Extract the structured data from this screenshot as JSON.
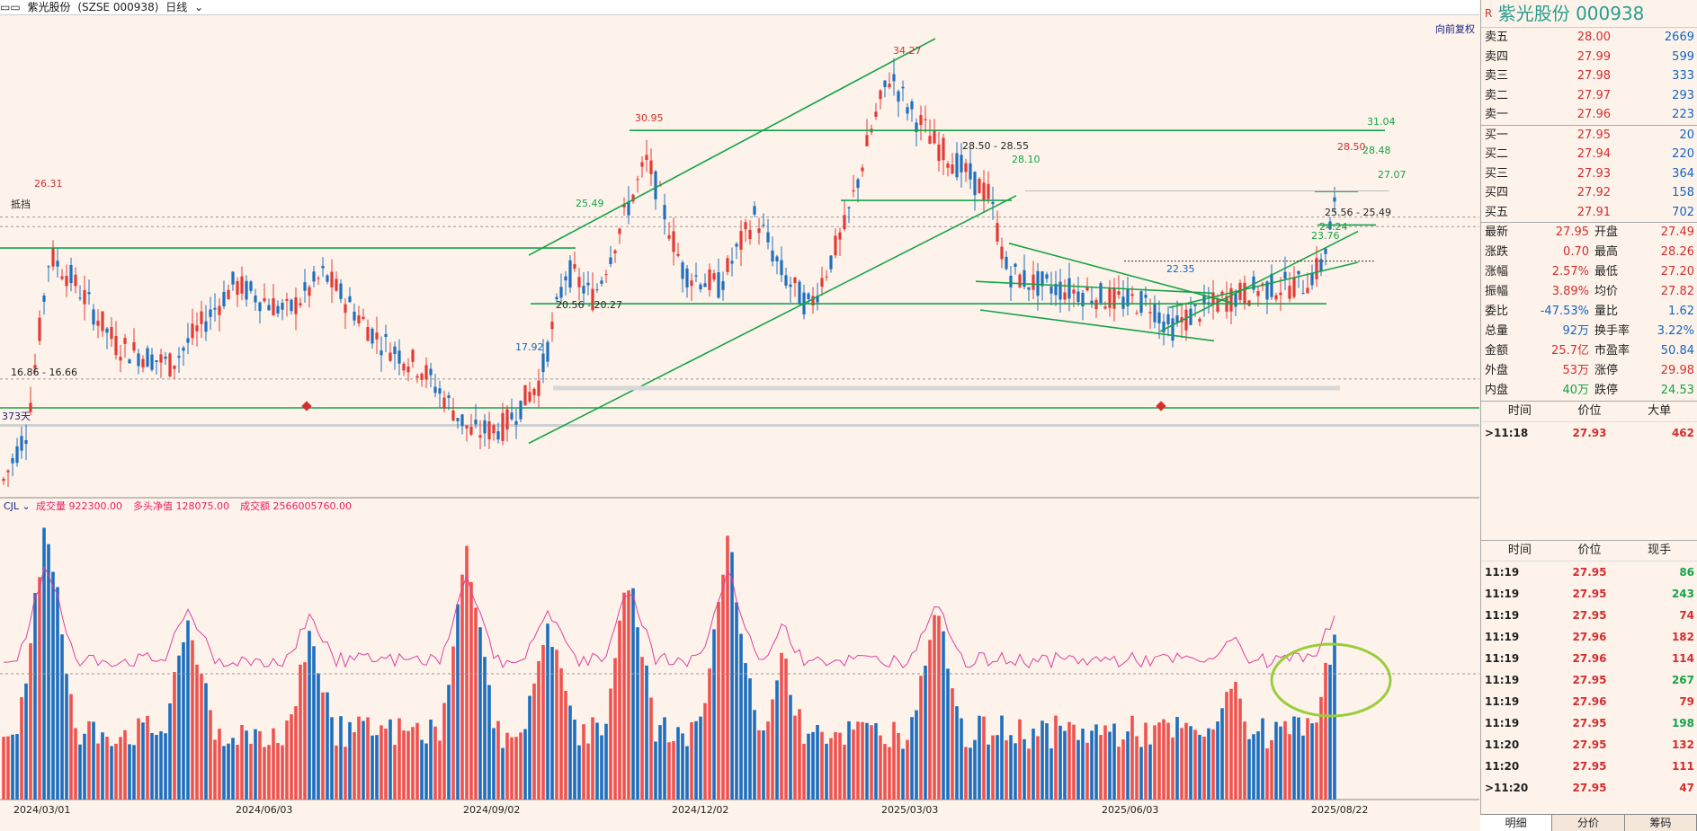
{
  "titlebar": {
    "icon": "window-icon",
    "stock": "紫光股份",
    "code": "(SZSE 000938)",
    "period": "日线"
  },
  "main": {
    "price_labels": [
      {
        "text": "34.27",
        "color": "#d32f2f"
      },
      {
        "text": "30.95",
        "color": "#d32f2f"
      },
      {
        "text": "26.31",
        "color": "#d32f2f"
      },
      {
        "text": "28.50",
        "color": "#d32f2f"
      },
      {
        "text": "31.04",
        "color": "#16a34a"
      },
      {
        "text": "28.50 - 28.55",
        "color": "#222"
      },
      {
        "text": "28.10",
        "color": "#16a34a"
      },
      {
        "text": "28.48",
        "color": "#16a34a"
      },
      {
        "text": "27.07",
        "color": "#16a34a"
      },
      {
        "text": "25.49",
        "color": "#16a34a"
      },
      {
        "text": "25.56 - 25.49",
        "color": "#222"
      },
      {
        "text": "24.24",
        "color": "#16a34a"
      },
      {
        "text": "23.76",
        "color": "#16a34a"
      },
      {
        "text": "22.35",
        "color": "#1565c0"
      },
      {
        "text": "20.56 - 20.27",
        "color": "#222"
      },
      {
        "text": "17.92",
        "color": "#1565c0"
      },
      {
        "text": "16.86 - 16.66",
        "color": "#222"
      },
      {
        "text": "抵挡",
        "color": "#222"
      },
      {
        "text": "向前复权",
        "color": "#1a237e"
      },
      {
        "text": "373天",
        "color": "#1a237e"
      }
    ],
    "indicator": {
      "name": "CJL",
      "items": [
        {
          "label": "成交量",
          "value": "922300.00",
          "color": "#e91e63"
        },
        {
          "label": "多头净值",
          "value": "128075.00",
          "color": "#e91e63"
        },
        {
          "label": "成交额",
          "value": "2566005760.00",
          "color": "#e91e63"
        }
      ]
    },
    "dates": [
      "2024/03/01",
      "2024/06/03",
      "2024/09/02",
      "2024/12/02",
      "2025/03/03",
      "2025/06/03",
      "2025/08/22"
    ]
  },
  "chart_data": {
    "type": "candlestick",
    "title": "紫光股份 000938 日线",
    "ylim": [
      15.5,
      35.5
    ],
    "notable": {
      "high": 34.27,
      "low": 17.92,
      "last": 27.95
    },
    "volume": {
      "latest": 922300,
      "latest_amount": 2566005760
    }
  },
  "quote": {
    "name": "紫光股份",
    "code": "000938",
    "asks": [
      {
        "label": "卖五",
        "price": "28.00",
        "vol": "2669"
      },
      {
        "label": "卖四",
        "price": "27.99",
        "vol": "599"
      },
      {
        "label": "卖三",
        "price": "27.98",
        "vol": "333"
      },
      {
        "label": "卖二",
        "price": "27.97",
        "vol": "293"
      },
      {
        "label": "卖一",
        "price": "27.96",
        "vol": "223"
      }
    ],
    "bids": [
      {
        "label": "买一",
        "price": "27.95",
        "vol": "20"
      },
      {
        "label": "买二",
        "price": "27.94",
        "vol": "220"
      },
      {
        "label": "买三",
        "price": "27.93",
        "vol": "364"
      },
      {
        "label": "买四",
        "price": "27.92",
        "vol": "158"
      },
      {
        "label": "买五",
        "price": "27.91",
        "vol": "702"
      }
    ],
    "stats": [
      {
        "l": "最新",
        "v": "27.95",
        "vc": "red",
        "l2": "开盘",
        "v2": "27.49",
        "v2c": "red"
      },
      {
        "l": "涨跌",
        "v": "0.70",
        "vc": "red",
        "l2": "最高",
        "v2": "28.26",
        "v2c": "red"
      },
      {
        "l": "涨幅",
        "v": "2.57%",
        "vc": "red",
        "l2": "最低",
        "v2": "27.20",
        "v2c": "red"
      },
      {
        "l": "振幅",
        "v": "3.89%",
        "vc": "red",
        "l2": "均价",
        "v2": "27.82",
        "v2c": "red"
      },
      {
        "l": "委比",
        "v": "-47.53%",
        "vc": "blu",
        "l2": "量比",
        "v2": "1.62",
        "v2c": "blu"
      },
      {
        "l": "总量",
        "v": "92万",
        "vc": "blu",
        "l2": "换手率",
        "v2": "3.22%",
        "v2c": "blu"
      },
      {
        "l": "金额",
        "v": "25.7亿",
        "vc": "red",
        "l2": "市盈率",
        "v2": "50.84",
        "v2c": "blu"
      },
      {
        "l": "外盘",
        "v": "53万",
        "vc": "red",
        "l2": "涨停",
        "v2": "29.98",
        "v2c": "red"
      },
      {
        "l": "内盘",
        "v": "40万",
        "vc": "grn",
        "l2": "跌停",
        "v2": "24.53",
        "v2c": "grn"
      }
    ],
    "bigorder_header": [
      "时间",
      "价位",
      "大单"
    ],
    "bigorder": [
      {
        "t": "11:18",
        "p": "27.93",
        "v": "462"
      }
    ],
    "trades_header": [
      "时间",
      "价位",
      "现手"
    ],
    "trades": [
      {
        "t": "11:19",
        "p": "27.95",
        "v": "86",
        "c": "grn"
      },
      {
        "t": "11:19",
        "p": "27.95",
        "v": "243",
        "c": "grn"
      },
      {
        "t": "11:19",
        "p": "27.95",
        "v": "74",
        "c": "red"
      },
      {
        "t": "11:19",
        "p": "27.96",
        "v": "182",
        "c": "red"
      },
      {
        "t": "11:19",
        "p": "27.96",
        "v": "114",
        "c": "red"
      },
      {
        "t": "11:19",
        "p": "27.95",
        "v": "267",
        "c": "grn"
      },
      {
        "t": "11:19",
        "p": "27.96",
        "v": "79",
        "c": "red"
      },
      {
        "t": "11:19",
        "p": "27.95",
        "v": "198",
        "c": "grn"
      },
      {
        "t": "11:20",
        "p": "27.95",
        "v": "132",
        "c": "red"
      },
      {
        "t": "11:20",
        "p": "27.95",
        "v": "111",
        "c": "red"
      },
      {
        "t": "11:20",
        "p": "27.95",
        "v": "47",
        "c": "red"
      }
    ],
    "tabs": [
      "明细",
      "分价",
      "筹码"
    ]
  }
}
